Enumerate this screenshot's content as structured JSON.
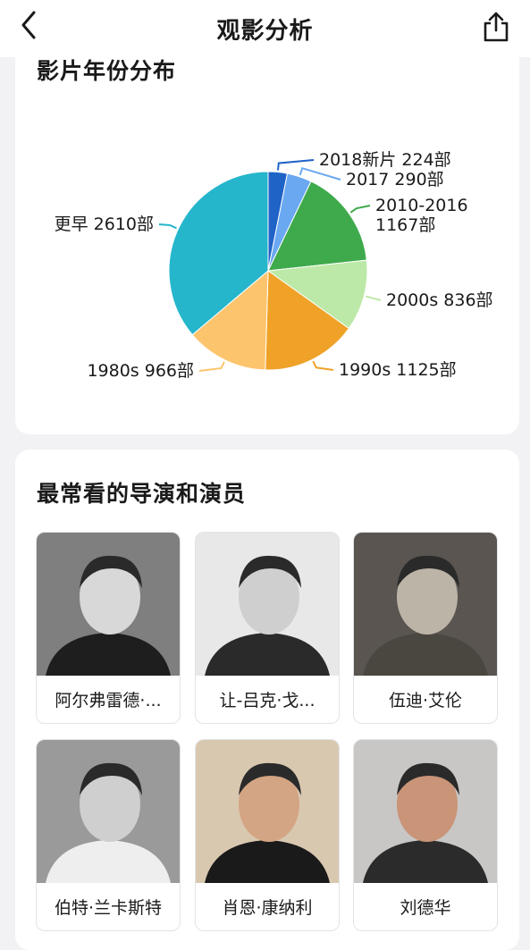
{
  "nav": {
    "title": "观影分析",
    "back_icon": "chevron-left-icon",
    "share_icon": "share-icon"
  },
  "year_section": {
    "title": "影片年份分布"
  },
  "chart_data": {
    "type": "pie",
    "title": "影片年份分布",
    "slices": [
      {
        "label": "2018新片",
        "value": 224,
        "text": "2018新片 224部",
        "color": "#1f63c6"
      },
      {
        "label": "2017",
        "value": 290,
        "text": "2017 290部",
        "color": "#6aa8f2"
      },
      {
        "label": "2010-2016",
        "value": 1167,
        "text": "2010-2016\n1167部",
        "color": "#3faa4c"
      },
      {
        "label": "2000s",
        "value": 836,
        "text": "2000s 836部",
        "color": "#bde9a8"
      },
      {
        "label": "1990s",
        "value": 1125,
        "text": "1990s 1125部",
        "color": "#efa227"
      },
      {
        "label": "1980s",
        "value": 966,
        "text": "1980s 966部",
        "color": "#fcc46d"
      },
      {
        "label": "更早",
        "value": 2610,
        "text": "更早 2610部",
        "color": "#25b6cc"
      }
    ]
  },
  "people_section": {
    "title": "最常看的导演和演员",
    "people": [
      {
        "name": "阿尔弗雷德·...",
        "bg": "#7f7f7f",
        "face": "#d8d8d8",
        "suit": "#1e1e1e"
      },
      {
        "name": "让-吕克·戈...",
        "bg": "#e8e8e8",
        "face": "#cfcfcf",
        "suit": "#2a2a2a"
      },
      {
        "name": "伍迪·艾伦",
        "bg": "#5a5550",
        "face": "#bdb4a8",
        "suit": "#4a4640"
      },
      {
        "name": "伯特·兰卡斯特",
        "bg": "#9a9a9a",
        "face": "#cfcfcf",
        "suit": "#eeeeee"
      },
      {
        "name": "肖恩·康纳利",
        "bg": "#d9c8b0",
        "face": "#d4a584",
        "suit": "#1a1a1a"
      },
      {
        "name": "刘德华",
        "bg": "#c9c7c5",
        "face": "#c99477",
        "suit": "#2b2b2b"
      }
    ]
  }
}
